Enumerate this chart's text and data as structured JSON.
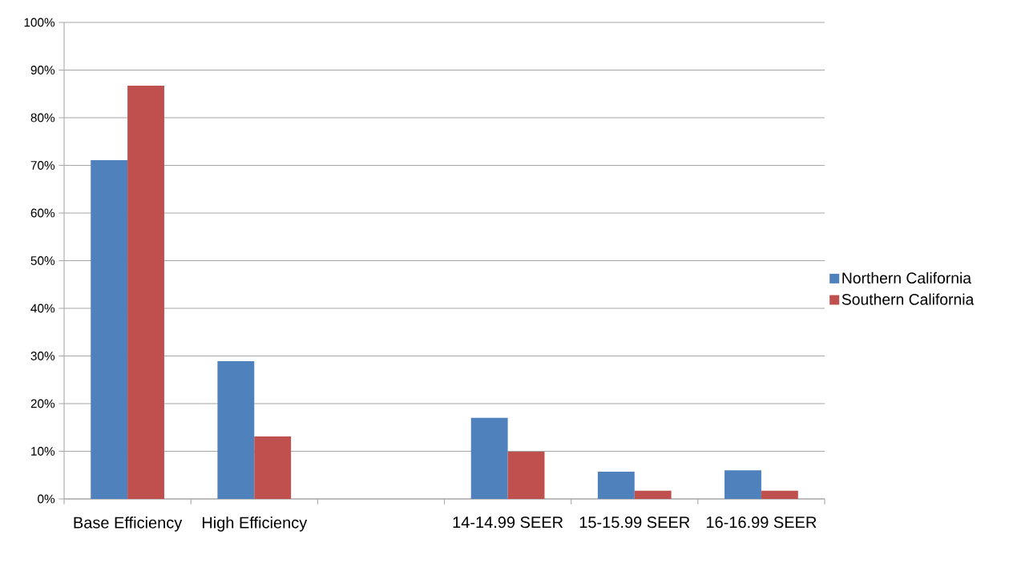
{
  "chart_data": {
    "type": "bar",
    "categories": [
      "Base Efficiency",
      "High Efficiency",
      null,
      "14-14.99 SEER",
      "15-15.99 SEER",
      "16-16.99 SEER"
    ],
    "series": [
      {
        "name": "Northern California",
        "color": "#4f81bd",
        "values": [
          71.1,
          28.9,
          null,
          17.0,
          5.7,
          6.0
        ]
      },
      {
        "name": "Southern California",
        "color": "#c0504d",
        "values": [
          86.7,
          13.1,
          null,
          9.9,
          1.7,
          1.7
        ]
      }
    ],
    "ylim": [
      0,
      100
    ],
    "yticks": [
      {
        "value": 0,
        "label": "0%"
      },
      {
        "value": 10,
        "label": "10%"
      },
      {
        "value": 20,
        "label": "20%"
      },
      {
        "value": 30,
        "label": "30%"
      },
      {
        "value": 40,
        "label": "40%"
      },
      {
        "value": 50,
        "label": "50%"
      },
      {
        "value": 60,
        "label": "60%"
      },
      {
        "value": 70,
        "label": "70%"
      },
      {
        "value": 80,
        "label": "80%"
      },
      {
        "value": 90,
        "label": "90%"
      },
      {
        "value": 100,
        "label": "100%"
      }
    ],
    "grid": "y",
    "legend": "right"
  }
}
